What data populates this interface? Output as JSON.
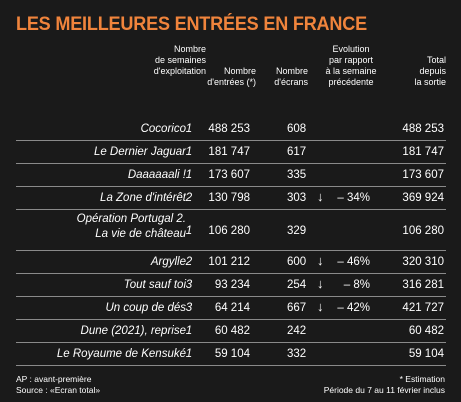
{
  "title": "LES MEILLEURES ENTRÉES EN FRANCE",
  "headers": {
    "weeks": "Nombre\nde semaines\nd'exploitation",
    "entrees": "Nombre\nd'entrées (*)",
    "ecrans": "Nombre\nd'écrans",
    "evolution": "Evolution\npar rapport\nà la semaine\nprécédente",
    "total": "Total\ndepuis\nla sortie"
  },
  "rows": [
    {
      "film": "Cocorico",
      "weeks": "1",
      "entrees": "488 253",
      "ecrans": "608",
      "arrow": "",
      "evolution": "",
      "total": "488 253"
    },
    {
      "film": "Le Dernier Jaguar",
      "weeks": "1",
      "entrees": "181 747",
      "ecrans": "617",
      "arrow": "",
      "evolution": "",
      "total": "181 747"
    },
    {
      "film": "Daaaaaali !",
      "weeks": "1",
      "entrees": "173 607",
      "ecrans": "335",
      "arrow": "",
      "evolution": "",
      "total": "173 607"
    },
    {
      "film": "La Zone d'intérêt",
      "weeks": "2",
      "entrees": "130 798",
      "ecrans": "303",
      "arrow": "↓",
      "evolution": "– 34%",
      "total": "369 924"
    },
    {
      "film": "Opération Portugal 2.\nLa vie de château",
      "weeks": "1",
      "entrees": "106 280",
      "ecrans": "329",
      "arrow": "",
      "evolution": "",
      "total": "106 280"
    },
    {
      "film": "Argylle",
      "weeks": "2",
      "entrees": "101 212",
      "ecrans": "600",
      "arrow": "↓",
      "evolution": "– 46%",
      "total": "320 310"
    },
    {
      "film": "Tout sauf toi",
      "weeks": "3",
      "entrees": "93 234",
      "ecrans": "254",
      "arrow": "↓",
      "evolution": "– 8%",
      "total": "316 281"
    },
    {
      "film": "Un coup de dés",
      "weeks": "3",
      "entrees": "64 214",
      "ecrans": "667",
      "arrow": "↓",
      "evolution": "– 42%",
      "total": "421 727"
    },
    {
      "film": "Dune (2021), reprise",
      "weeks": "1",
      "entrees": "60 482",
      "ecrans": "242",
      "arrow": "",
      "evolution": "",
      "total": "60 482"
    },
    {
      "film": "Le Royaume de Kensuké",
      "weeks": "1",
      "entrees": "59 104",
      "ecrans": "332",
      "arrow": "",
      "evolution": "",
      "total": "59 104"
    }
  ],
  "footer": {
    "left_line1": "AP : avant-première",
    "left_line2": "Source : «Ecran total»",
    "right_line1": "* Estimation",
    "right_line2": "Période du 7 au 11 février inclus"
  },
  "colors": {
    "title": "#f0843c",
    "background": "#1a1a1a",
    "arrow": "#ffffff"
  }
}
